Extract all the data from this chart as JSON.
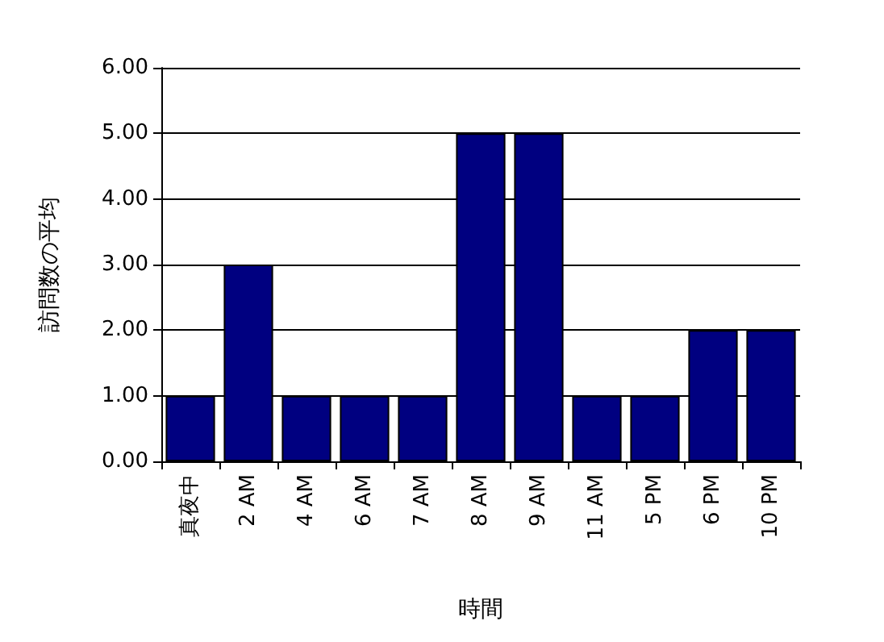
{
  "chart_data": {
    "type": "bar",
    "xlabel": "時間",
    "ylabel": "訪問数の平均",
    "categories": [
      "真夜中",
      "2 AM",
      "4 AM",
      "6 AM",
      "7 AM",
      "8 AM",
      "9 AM",
      "11 AM",
      "5 PM",
      "6 PM",
      "10 PM"
    ],
    "values": [
      1,
      3,
      1,
      1,
      1,
      5,
      5,
      1,
      1,
      2,
      2
    ],
    "color": "#000080",
    "ylim": [
      0,
      6
    ],
    "yticks": [
      {
        "value": 0,
        "label": "0.00"
      },
      {
        "value": 1,
        "label": "1.00"
      },
      {
        "value": 2,
        "label": "2.00"
      },
      {
        "value": 3,
        "label": "3.00"
      },
      {
        "value": 4,
        "label": "4.00"
      },
      {
        "value": 5,
        "label": "5.00"
      },
      {
        "value": 6,
        "label": "6.00"
      }
    ],
    "grid": "y"
  }
}
